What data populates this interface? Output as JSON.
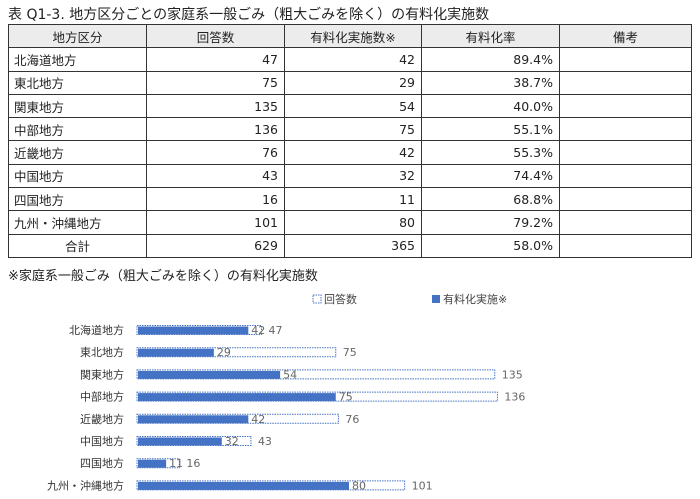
{
  "title": "表 Q1-3. 地方区分ごとの家庭系一般ごみ（粗大ごみを除く）の有料化実施数",
  "table": {
    "headers": [
      "地方区分",
      "回答数",
      "有料化実施数※",
      "有料化率",
      "備考"
    ],
    "rows": [
      {
        "region": "北海道地方",
        "responses": "47",
        "implemented": "42",
        "rate": "89.4%",
        "note": ""
      },
      {
        "region": "東北地方",
        "responses": "75",
        "implemented": "29",
        "rate": "38.7%",
        "note": ""
      },
      {
        "region": "関東地方",
        "responses": "135",
        "implemented": "54",
        "rate": "40.0%",
        "note": ""
      },
      {
        "region": "中部地方",
        "responses": "136",
        "implemented": "75",
        "rate": "55.1%",
        "note": ""
      },
      {
        "region": "近畿地方",
        "responses": "76",
        "implemented": "42",
        "rate": "55.3%",
        "note": ""
      },
      {
        "region": "中国地方",
        "responses": "43",
        "implemented": "32",
        "rate": "74.4%",
        "note": ""
      },
      {
        "region": "四国地方",
        "responses": "16",
        "implemented": "11",
        "rate": "68.8%",
        "note": ""
      },
      {
        "region": "九州・沖縄地方",
        "responses": "101",
        "implemented": "80",
        "rate": "79.2%",
        "note": ""
      }
    ],
    "total": {
      "region": "合計",
      "responses": "629",
      "implemented": "365",
      "rate": "58.0%",
      "note": ""
    }
  },
  "footnote": "※家庭系一般ごみ（粗大ごみを除く）の有料化実施数",
  "chart_data": {
    "type": "bar",
    "orientation": "horizontal",
    "categories": [
      "北海道地方",
      "東北地方",
      "関東地方",
      "中部地方",
      "近畿地方",
      "中国地方",
      "四国地方",
      "九州・沖縄地方"
    ],
    "series": [
      {
        "name": "回答数",
        "values": [
          47,
          75,
          135,
          136,
          76,
          43,
          16,
          101
        ],
        "style": "dotted-outline",
        "color": "#4472c4"
      },
      {
        "name": "有料化実施※",
        "values": [
          42,
          29,
          54,
          75,
          42,
          32,
          11,
          80
        ],
        "style": "solid",
        "color": "#4472c4"
      }
    ],
    "xlim": [
      0,
      160
    ],
    "legend_position": "top",
    "grid": false
  }
}
